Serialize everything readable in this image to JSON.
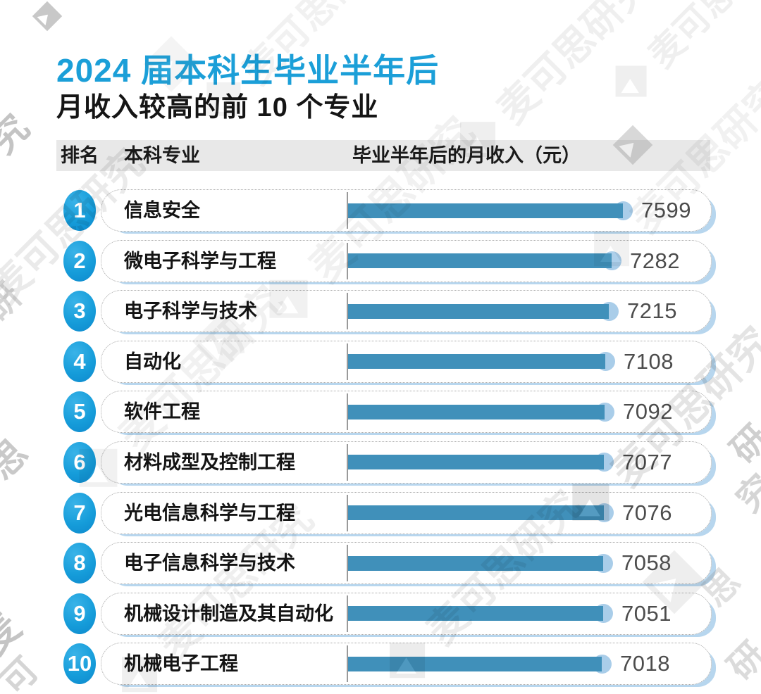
{
  "title": "2024 届本科生毕业半年后",
  "subtitle": "月收入较高的前 10 个专业",
  "columns": {
    "rank": "排名",
    "major": "本科专业",
    "income": "毕业半年后的月收入（元）"
  },
  "watermark": {
    "text": "麦可思研究",
    "logo": "mycos-diamond-logo",
    "fragments": [
      "究",
      "研",
      "思",
      "麦",
      "可",
      "研",
      "究",
      "思",
      "研"
    ]
  },
  "colors": {
    "title_blue": "#1b9fd8",
    "rank_circle_blue": "#169dda",
    "bar_blue": "#4090ba",
    "bar_tip_blue": "#a9cde9",
    "card_shadow_blue": "#b7d6ee",
    "header_strip_gray": "#e8e8e8",
    "value_text_gray": "#4c4c4c"
  },
  "chart_data": {
    "type": "bar",
    "orientation": "horizontal",
    "title": "2024 届本科生毕业半年后 月收入较高的前 10 个专业",
    "value_axis_label": "毕业半年后的月收入（元）",
    "xlim": [
      0,
      7599
    ],
    "grid": false,
    "legend": false,
    "rows": [
      {
        "rank": "1",
        "major": "信息安全",
        "income": 7599
      },
      {
        "rank": "2",
        "major": "微电子科学与工程",
        "income": 7282
      },
      {
        "rank": "3",
        "major": "电子科学与技术",
        "income": 7215
      },
      {
        "rank": "4",
        "major": "自动化",
        "income": 7108
      },
      {
        "rank": "5",
        "major": "软件工程",
        "income": 7092
      },
      {
        "rank": "6",
        "major": "材料成型及控制工程",
        "income": 7077
      },
      {
        "rank": "7",
        "major": "光电信息科学与工程",
        "income": 7076
      },
      {
        "rank": "8",
        "major": "电子信息科学与技术",
        "income": 7058
      },
      {
        "rank": "9",
        "major": "机械设计制造及其自动化",
        "income": 7051
      },
      {
        "rank": "10",
        "major": "机械电子工程",
        "income": 7018
      }
    ]
  }
}
